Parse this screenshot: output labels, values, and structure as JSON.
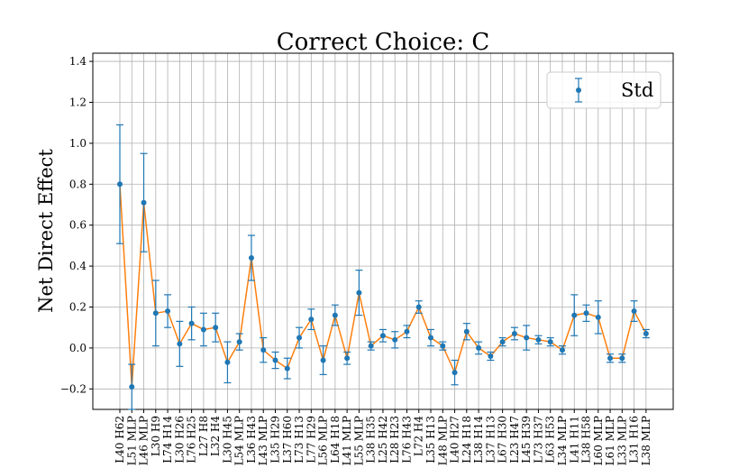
{
  "chart_data": {
    "type": "errorbar",
    "title": "Correct Choice: C",
    "y_label": "Net Direct Effect",
    "categories": [
      "L40 H62",
      "L51 MLP",
      "L46 MLP",
      "L30 H9",
      "L74 H14",
      "L30 H26",
      "L76 H25",
      "L27 H8",
      "L32 H4",
      "L30 H45",
      "L54 MLP",
      "L36 H43",
      "L43 MLP",
      "L35 H29",
      "L37 H60",
      "L73 H13",
      "L77 H29",
      "L56 MLP",
      "L64 H18",
      "L41 MLP",
      "L55 MLP",
      "L38 H35",
      "L25 H42",
      "L28 H23",
      "L76 H43",
      "L72 H4",
      "L35 H13",
      "L48 MLP",
      "L40 H27",
      "L24 H18",
      "L38 H14",
      "L37 H13",
      "L67 H30",
      "L23 H47",
      "L45 H39",
      "L73 H37",
      "L63 H53",
      "L34 MLP",
      "L41 H11",
      "L38 H58",
      "L60 MLP",
      "L61 MLP",
      "L33 MLP",
      "L31 H16",
      "L38 MLP"
    ],
    "series": [
      {
        "name": "Std",
        "color": "#1f77b4",
        "line_color": "#ff7f0e",
        "values": [
          0.8,
          -0.19,
          0.71,
          0.17,
          0.18,
          0.02,
          0.12,
          0.09,
          0.1,
          -0.07,
          0.03,
          0.44,
          -0.01,
          -0.06,
          -0.1,
          0.05,
          0.14,
          -0.06,
          0.16,
          -0.05,
          0.27,
          0.01,
          0.06,
          0.04,
          0.08,
          0.2,
          0.05,
          0.01,
          -0.12,
          0.08,
          0.0,
          -0.04,
          0.03,
          0.07,
          0.05,
          0.04,
          0.03,
          -0.01,
          0.16,
          0.17,
          0.15,
          -0.05,
          -0.05,
          0.18,
          0.07
        ],
        "errors": [
          0.29,
          0.11,
          0.24,
          0.16,
          0.08,
          0.11,
          0.08,
          0.08,
          0.07,
          0.1,
          0.04,
          0.11,
          0.06,
          0.04,
          0.05,
          0.05,
          0.05,
          0.07,
          0.05,
          0.03,
          0.11,
          0.02,
          0.03,
          0.04,
          0.03,
          0.03,
          0.04,
          0.02,
          0.06,
          0.04,
          0.03,
          0.02,
          0.02,
          0.03,
          0.06,
          0.02,
          0.02,
          0.02,
          0.1,
          0.04,
          0.08,
          0.02,
          0.02,
          0.05,
          0.02
        ]
      }
    ],
    "ylim": [
      -0.3,
      1.44
    ],
    "yticks": [
      {
        "value": -0.2,
        "label": "−0.2"
      },
      {
        "value": 0,
        "label": "0.0"
      },
      0.2,
      0.4,
      0.6,
      0.8,
      {
        "value": 1,
        "label": "1.0"
      },
      1.2,
      1.4
    ],
    "grid": true,
    "legend": "upper right"
  }
}
